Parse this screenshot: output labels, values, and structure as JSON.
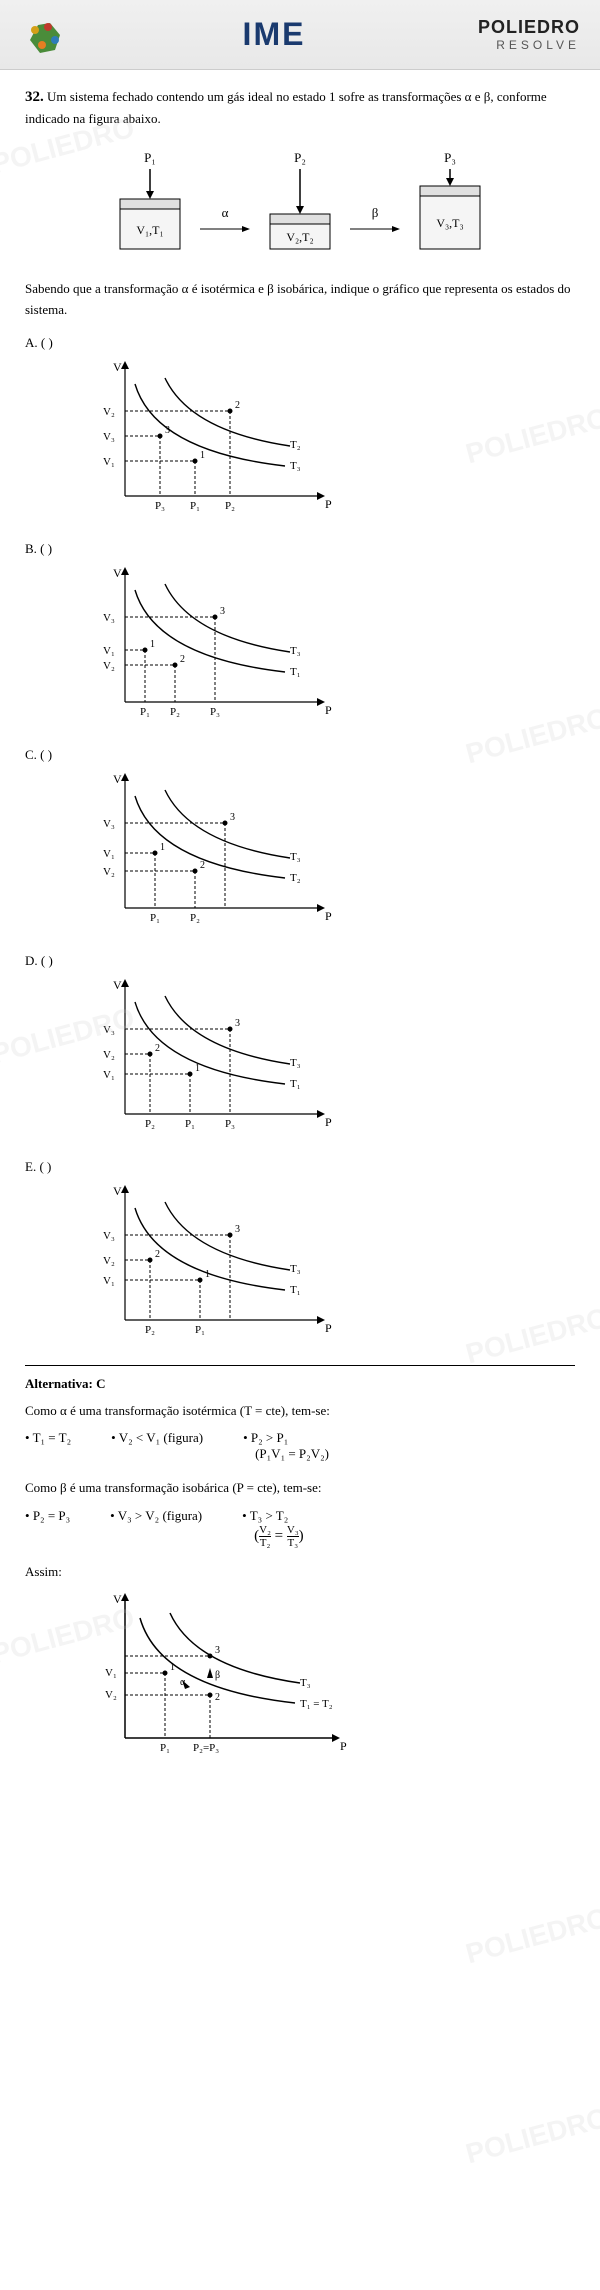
{
  "header": {
    "center": "IME",
    "right_line1": "POLIEDRO",
    "right_line2": "RESOLVE"
  },
  "question_number": "32.",
  "question_text": "Um sistema fechado contendo um gás ideal no estado 1 sofre as transformações α e β, conforme indicado na figura abaixo.",
  "pistons": {
    "p1": {
      "pressure": "P₁",
      "state": "V₁,T₁",
      "level": 35
    },
    "p2": {
      "pressure": "P₂",
      "state": "V₂,T₂",
      "level": 25
    },
    "p3": {
      "pressure": "P₃",
      "state": "V₃,T₃",
      "level": 50
    },
    "arrow1": "α",
    "arrow2": "β"
  },
  "sub_text": "Sabendo que a transformação α é isotérmica e β isobárica, indique o gráfico que representa os estados do sistema.",
  "options": [
    {
      "label": "A. (   )",
      "y_labels": [
        "V₂",
        "V₃",
        "V₁"
      ],
      "x_labels": [
        "P₃",
        "P₁",
        "P₂"
      ],
      "t_labels": [
        "T₂",
        "T₃"
      ],
      "points": {
        "1": [
          110,
          105
        ],
        "2": [
          145,
          55
        ],
        "3": [
          75,
          80
        ]
      }
    },
    {
      "label": "B. (   )",
      "y_labels": [
        "V₃",
        "V₁",
        "V₂"
      ],
      "x_labels": [
        "P₁",
        "P₂",
        "P₃"
      ],
      "t_labels": [
        "T₃",
        "T₁"
      ],
      "points": {
        "1": [
          60,
          88
        ],
        "2": [
          90,
          103
        ],
        "3": [
          130,
          55
        ]
      }
    },
    {
      "label": "C. (   )",
      "y_labels": [
        "V₃",
        "V₁",
        "V₂"
      ],
      "x_labels": [
        "P₁",
        "P₂"
      ],
      "t_labels": [
        "T₃",
        "T₂"
      ],
      "points": {
        "1": [
          70,
          85
        ],
        "2": [
          110,
          103
        ],
        "3": [
          140,
          55
        ]
      }
    },
    {
      "label": "D. (   )",
      "y_labels": [
        "V₃",
        "V₂",
        "V₁"
      ],
      "x_labels": [
        "P₂",
        "P₁",
        "P₃"
      ],
      "t_labels": [
        "T₃",
        "T₁"
      ],
      "points": {
        "1": [
          105,
          100
        ],
        "2": [
          65,
          80
        ],
        "3": [
          145,
          55
        ]
      }
    },
    {
      "label": "E. (   )",
      "y_labels": [
        "V₃",
        "V₂",
        "V₁"
      ],
      "x_labels": [
        "P₂",
        "P₁"
      ],
      "t_labels": [
        "T₃",
        "T₁"
      ],
      "points": {
        "1": [
          115,
          100
        ],
        "2": [
          65,
          80
        ],
        "3": [
          145,
          55
        ]
      }
    }
  ],
  "answer": {
    "title": "Alternativa: C",
    "line1": "Como α é uma transformação isotérmica (T = cte), tem-se:",
    "alpha_items": [
      "T₁ = T₂",
      "V₂ < V₁ (figura)",
      "P₂ > P₁"
    ],
    "alpha_eq": "(P₁V₁ = P₂V₂)",
    "line2": "Como β é uma transformação isobárica (P = cte), tem-se:",
    "beta_items": [
      "P₂ = P₃",
      "V₃ > V₂ (figura)",
      "T₃ > T₂"
    ],
    "beta_eq": "(V₂/T₂ = V₃/T₃)",
    "final": "Assim:",
    "final_graph": {
      "y_labels": [
        "V₁",
        "V₂"
      ],
      "x_labels": [
        "P₁",
        "P₂=P₃"
      ],
      "t_labels": [
        "T₃",
        "T₁ = T₂"
      ]
    }
  },
  "colors": {
    "bg": "#ffffff",
    "text": "#000000",
    "header_logo": "#1a3a6e",
    "line": "#000000",
    "dash": "#000000"
  }
}
